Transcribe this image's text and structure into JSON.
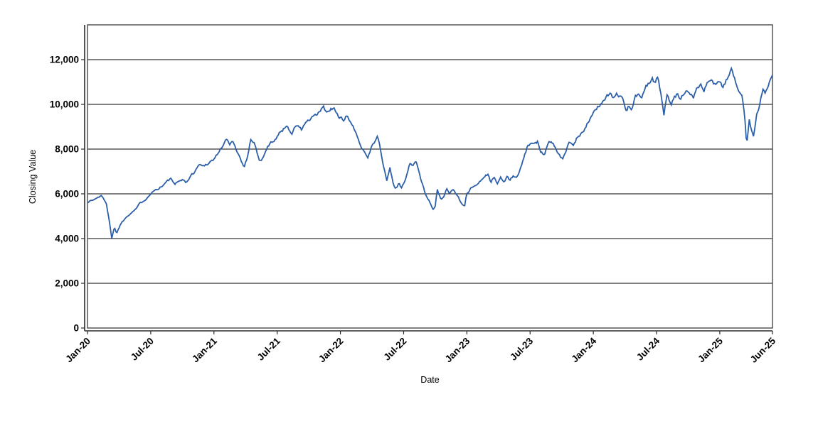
{
  "chart_data": {
    "type": "line",
    "title": "",
    "xlabel": "Date",
    "ylabel": "Closing Value",
    "grid": "horizontal-only",
    "legend": "none",
    "colors": {
      "line": "#2c5fa8",
      "gridline": "#000000",
      "plot_border": "#4a4a4a",
      "axis_line": "#2a2a2a",
      "background": "#ffffff"
    },
    "x_axis": {
      "ticks": [
        {
          "label": "Jan-20",
          "month": 0
        },
        {
          "label": "Jul-20",
          "month": 6
        },
        {
          "label": "Jan-21",
          "month": 12
        },
        {
          "label": "Jul-21",
          "month": 18
        },
        {
          "label": "Jan-22",
          "month": 24
        },
        {
          "label": "Jul-22",
          "month": 30
        },
        {
          "label": "Jan-23",
          "month": 36
        },
        {
          "label": "Jul-23",
          "month": 42
        },
        {
          "label": "Jan-24",
          "month": 48
        },
        {
          "label": "Jul-24",
          "month": 54
        },
        {
          "label": "Jan-25",
          "month": 60
        },
        {
          "label": "Jun-25",
          "month": 65
        }
      ],
      "range_months": [
        0,
        65
      ],
      "label_rotation_deg": -45
    },
    "y_axis": {
      "ticks": [
        {
          "label": "0",
          "value": 0
        },
        {
          "label": "2,000",
          "value": 2000
        },
        {
          "label": "4,000",
          "value": 4000
        },
        {
          "label": "6,000",
          "value": 6000
        },
        {
          "label": "8,000",
          "value": 8000
        },
        {
          "label": "10,000",
          "value": 10000
        },
        {
          "label": "12,000",
          "value": 12000
        }
      ],
      "range": [
        0,
        13556
      ]
    },
    "series": [
      {
        "name": "Closing Value",
        "color": "#2c5fa8",
        "noise_seed": 1337,
        "anchors": [
          [
            0,
            5650
          ],
          [
            0.5,
            5720
          ],
          [
            1.0,
            5830
          ],
          [
            1.35,
            5960
          ],
          [
            1.8,
            5500
          ],
          [
            2.05,
            4900
          ],
          [
            2.3,
            4040
          ],
          [
            2.55,
            4500
          ],
          [
            2.75,
            4250
          ],
          [
            3.2,
            4700
          ],
          [
            3.65,
            4950
          ],
          [
            4.05,
            5150
          ],
          [
            4.55,
            5320
          ],
          [
            5.05,
            5600
          ],
          [
            5.55,
            5800
          ],
          [
            6.0,
            6050
          ],
          [
            6.55,
            6200
          ],
          [
            7.05,
            6350
          ],
          [
            7.55,
            6550
          ],
          [
            7.95,
            6680
          ],
          [
            8.3,
            6380
          ],
          [
            8.7,
            6550
          ],
          [
            9.0,
            6680
          ],
          [
            9.35,
            6480
          ],
          [
            9.7,
            6750
          ],
          [
            10.0,
            6900
          ],
          [
            10.6,
            7300
          ],
          [
            11.0,
            7250
          ],
          [
            11.5,
            7400
          ],
          [
            12.0,
            7550
          ],
          [
            12.5,
            7900
          ],
          [
            13.0,
            8300
          ],
          [
            13.2,
            8420
          ],
          [
            13.5,
            8200
          ],
          [
            13.85,
            8330
          ],
          [
            14.3,
            7800
          ],
          [
            14.85,
            7220
          ],
          [
            15.2,
            7700
          ],
          [
            15.5,
            8460
          ],
          [
            15.85,
            8300
          ],
          [
            16.3,
            7450
          ],
          [
            16.7,
            7620
          ],
          [
            17.15,
            8150
          ],
          [
            17.6,
            8350
          ],
          [
            18.0,
            8600
          ],
          [
            18.5,
            8850
          ],
          [
            18.9,
            9060
          ],
          [
            19.4,
            8730
          ],
          [
            19.85,
            9100
          ],
          [
            20.3,
            8860
          ],
          [
            20.7,
            9200
          ],
          [
            21.1,
            9300
          ],
          [
            21.7,
            9500
          ],
          [
            22.1,
            9700
          ],
          [
            22.4,
            9870
          ],
          [
            22.75,
            9600
          ],
          [
            23.1,
            9760
          ],
          [
            23.4,
            9800
          ],
          [
            23.75,
            9500
          ],
          [
            24.05,
            9400
          ],
          [
            24.3,
            9170
          ],
          [
            24.65,
            9520
          ],
          [
            25.1,
            9100
          ],
          [
            25.45,
            8700
          ],
          [
            25.8,
            8350
          ],
          [
            26.15,
            8000
          ],
          [
            26.6,
            7660
          ],
          [
            26.95,
            8100
          ],
          [
            27.3,
            8400
          ],
          [
            27.55,
            8560
          ],
          [
            27.9,
            7700
          ],
          [
            28.2,
            7000
          ],
          [
            28.4,
            6600
          ],
          [
            28.7,
            7150
          ],
          [
            29.0,
            6500
          ],
          [
            29.25,
            6220
          ],
          [
            29.55,
            6450
          ],
          [
            29.8,
            6260
          ],
          [
            30.05,
            6500
          ],
          [
            30.3,
            6900
          ],
          [
            30.6,
            7400
          ],
          [
            30.9,
            7320
          ],
          [
            31.15,
            7500
          ],
          [
            31.6,
            6650
          ],
          [
            31.9,
            6300
          ],
          [
            32.1,
            5950
          ],
          [
            32.45,
            5650
          ],
          [
            32.8,
            5350
          ],
          [
            33.0,
            5500
          ],
          [
            33.2,
            6200
          ],
          [
            33.55,
            5700
          ],
          [
            33.9,
            5950
          ],
          [
            34.1,
            6250
          ],
          [
            34.4,
            6050
          ],
          [
            34.7,
            6200
          ],
          [
            34.95,
            6000
          ],
          [
            35.2,
            5870
          ],
          [
            35.5,
            5550
          ],
          [
            35.8,
            5480
          ],
          [
            35.95,
            6030
          ],
          [
            36.3,
            6200
          ],
          [
            37.0,
            6470
          ],
          [
            37.6,
            6730
          ],
          [
            38.0,
            6890
          ],
          [
            38.3,
            6500
          ],
          [
            38.6,
            6760
          ],
          [
            38.9,
            6450
          ],
          [
            39.2,
            6700
          ],
          [
            39.5,
            6550
          ],
          [
            39.8,
            6750
          ],
          [
            40.1,
            6600
          ],
          [
            40.4,
            6800
          ],
          [
            40.7,
            6700
          ],
          [
            41.0,
            7000
          ],
          [
            41.4,
            7550
          ],
          [
            41.75,
            8100
          ],
          [
            42.0,
            8250
          ],
          [
            42.35,
            8150
          ],
          [
            42.7,
            8300
          ],
          [
            43.0,
            7900
          ],
          [
            43.35,
            7800
          ],
          [
            43.7,
            8300
          ],
          [
            44.05,
            8400
          ],
          [
            44.4,
            8100
          ],
          [
            44.7,
            7800
          ],
          [
            45.05,
            7560
          ],
          [
            45.4,
            7900
          ],
          [
            45.75,
            8300
          ],
          [
            46.05,
            8100
          ],
          [
            46.4,
            8450
          ],
          [
            46.75,
            8650
          ],
          [
            47.1,
            8900
          ],
          [
            47.5,
            9200
          ],
          [
            48.0,
            9550
          ],
          [
            48.45,
            9900
          ],
          [
            48.8,
            10100
          ],
          [
            49.2,
            10350
          ],
          [
            49.6,
            10480
          ],
          [
            49.9,
            10300
          ],
          [
            50.2,
            10480
          ],
          [
            50.55,
            10350
          ],
          [
            50.9,
            10100
          ],
          [
            51.15,
            9700
          ],
          [
            51.35,
            9950
          ],
          [
            51.65,
            9750
          ],
          [
            51.95,
            10300
          ],
          [
            52.3,
            10480
          ],
          [
            52.6,
            10220
          ],
          [
            52.95,
            10750
          ],
          [
            53.3,
            10950
          ],
          [
            53.6,
            11200
          ],
          [
            53.85,
            10900
          ],
          [
            54.1,
            11240
          ],
          [
            54.45,
            10400
          ],
          [
            54.7,
            9430
          ],
          [
            55.0,
            10480
          ],
          [
            55.35,
            9970
          ],
          [
            55.7,
            10300
          ],
          [
            56.0,
            10480
          ],
          [
            56.3,
            10200
          ],
          [
            56.6,
            10500
          ],
          [
            56.9,
            10640
          ],
          [
            57.2,
            10550
          ],
          [
            57.5,
            10380
          ],
          [
            57.8,
            10800
          ],
          [
            58.2,
            10850
          ],
          [
            58.5,
            10650
          ],
          [
            58.9,
            11000
          ],
          [
            59.2,
            11100
          ],
          [
            59.5,
            10900
          ],
          [
            59.8,
            11050
          ],
          [
            60.0,
            10920
          ],
          [
            60.3,
            10750
          ],
          [
            60.7,
            11150
          ],
          [
            61.1,
            11490
          ],
          [
            61.45,
            11100
          ],
          [
            61.8,
            10700
          ],
          [
            62.1,
            10450
          ],
          [
            62.35,
            9600
          ],
          [
            62.55,
            8150
          ],
          [
            62.8,
            9300
          ],
          [
            63.0,
            8850
          ],
          [
            63.2,
            8650
          ],
          [
            63.5,
            9600
          ],
          [
            63.8,
            10050
          ],
          [
            64.1,
            10700
          ],
          [
            64.35,
            10480
          ],
          [
            64.6,
            10900
          ],
          [
            64.8,
            11150
          ],
          [
            65.0,
            11230
          ]
        ]
      }
    ]
  }
}
